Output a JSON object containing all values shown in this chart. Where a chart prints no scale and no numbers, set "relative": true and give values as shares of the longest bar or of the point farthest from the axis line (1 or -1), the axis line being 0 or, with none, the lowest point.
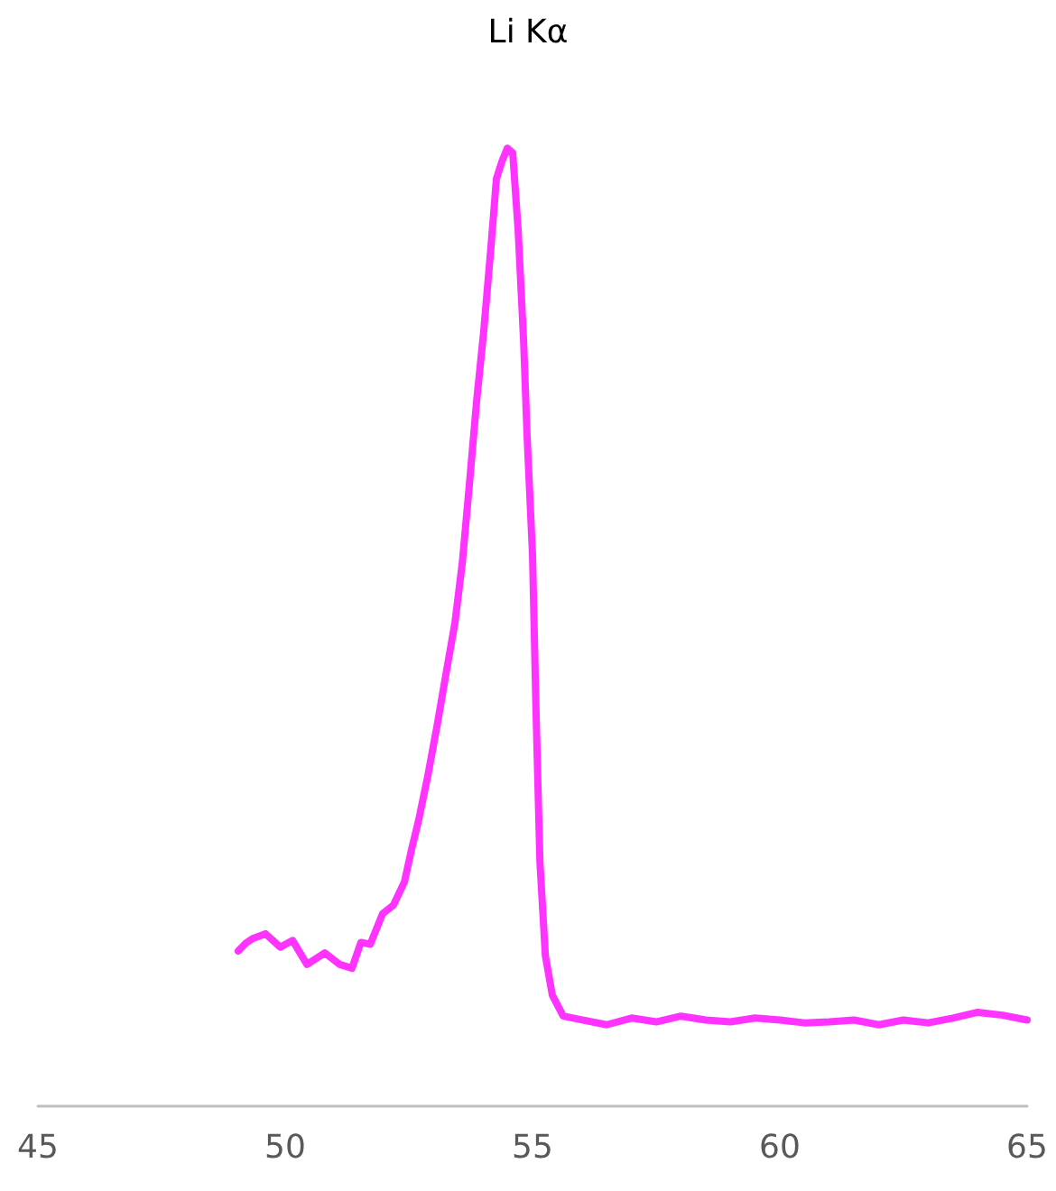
{
  "chart_data": {
    "type": "line",
    "title": "Li Kα",
    "relative": true,
    "xlim": [
      45,
      65
    ],
    "xticks": [
      45,
      50,
      55,
      60,
      65
    ],
    "grid": false,
    "marker": "none",
    "line_style": "solid",
    "series": [
      {
        "color": "#ff33ff",
        "x": [
          49.05,
          49.2,
          49.34,
          49.6,
          49.9,
          50.15,
          50.44,
          50.8,
          51.1,
          51.35,
          51.53,
          51.72,
          51.97,
          52.19,
          52.41,
          52.55,
          52.7,
          52.88,
          53.07,
          53.25,
          53.43,
          53.58,
          53.72,
          53.87,
          54.01,
          54.16,
          54.27,
          54.38,
          54.49,
          54.6,
          54.71,
          54.82,
          54.89,
          55.0,
          55.07,
          55.15,
          55.26,
          55.4,
          55.62,
          56.0,
          56.5,
          57.0,
          57.5,
          58.0,
          58.5,
          59.0,
          59.5,
          60.0,
          60.5,
          61.0,
          61.5,
          62.0,
          62.5,
          63.0,
          63.5,
          64.0,
          64.5,
          65.0
        ],
        "values": [
          0.162,
          0.17,
          0.175,
          0.18,
          0.166,
          0.173,
          0.148,
          0.16,
          0.148,
          0.144,
          0.171,
          0.169,
          0.201,
          0.21,
          0.234,
          0.267,
          0.299,
          0.344,
          0.397,
          0.451,
          0.504,
          0.567,
          0.647,
          0.736,
          0.807,
          0.897,
          0.968,
          0.986,
          1,
          0.995,
          0.914,
          0.799,
          0.7,
          0.576,
          0.415,
          0.255,
          0.157,
          0.116,
          0.094,
          0.09,
          0.085,
          0.092,
          0.088,
          0.094,
          0.09,
          0.088,
          0.092,
          0.09,
          0.087,
          0.088,
          0.09,
          0.085,
          0.09,
          0.087,
          0.092,
          0.098,
          0.095,
          0.09
        ]
      }
    ]
  }
}
